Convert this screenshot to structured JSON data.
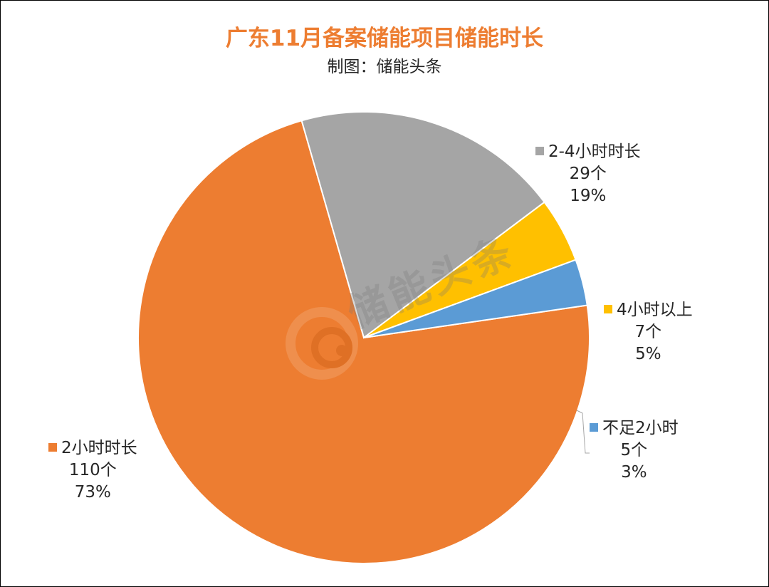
{
  "chart_data": {
    "type": "pie",
    "title": "广东11月备案储能项目储能时长",
    "subtitle": "制图：储能头条",
    "slices": [
      {
        "label": "2小时时长",
        "count": "110个",
        "percent": "73%",
        "value": 110,
        "color": "#ED7D31"
      },
      {
        "label": "2-4小时时长",
        "count": "29个",
        "percent": "19%",
        "value": 29,
        "color": "#A5A5A5"
      },
      {
        "label": "4小时以上",
        "count": "7个",
        "percent": "5%",
        "value": 7,
        "color": "#FFC000"
      },
      {
        "label": "不足2小时",
        "count": "5个",
        "percent": "3%",
        "value": 5,
        "color": "#5B9BD5"
      }
    ],
    "watermark": "储能头条"
  }
}
